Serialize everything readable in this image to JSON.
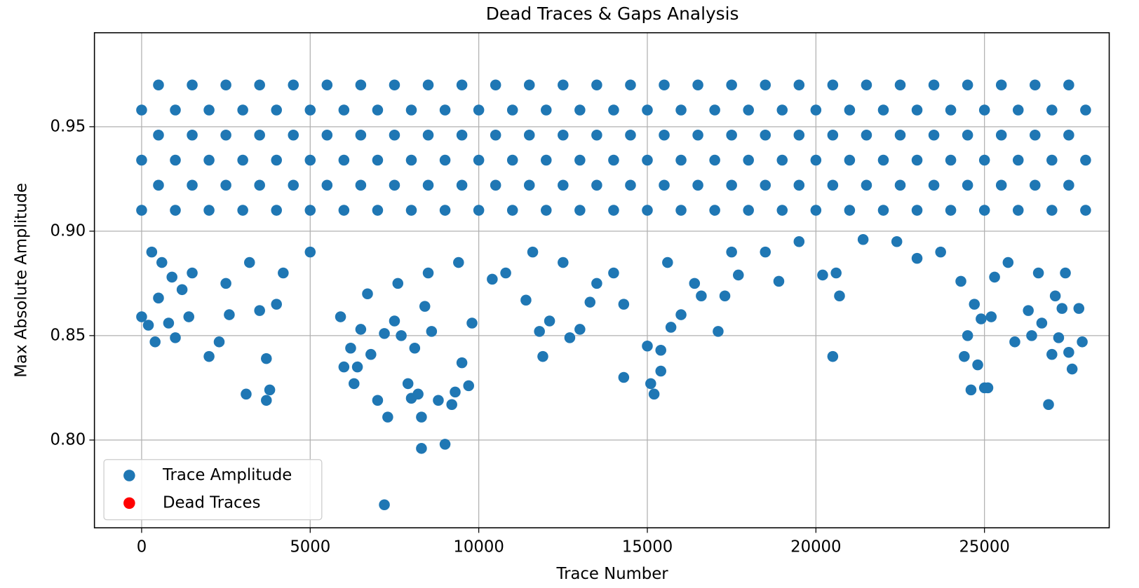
{
  "chart_data": {
    "type": "scatter",
    "title": "Dead Traces & Gaps Analysis",
    "xlabel": "Trace Number",
    "ylabel": "Max Absolute Amplitude",
    "xlim": [
      -1400,
      28700
    ],
    "ylim": [
      0.758,
      0.995
    ],
    "xticks": [
      0,
      5000,
      10000,
      15000,
      20000,
      25000
    ],
    "yticks": [
      {
        "value": 0.8,
        "label": "0.80"
      },
      0.85,
      {
        "value": 0.9,
        "label": "0.90"
      },
      0.95
    ],
    "grid": true,
    "legend": "lower left",
    "series": [
      {
        "name": "Trace Amplitude",
        "color": "#1f77b4",
        "x": [
          0,
          1000,
          2000,
          3000,
          4000,
          5000,
          6000,
          7000,
          8000,
          9000,
          10000,
          11000,
          12000,
          13000,
          14000,
          15000,
          16000,
          17000,
          18000,
          19000,
          20000,
          21000,
          22000,
          23000,
          24000,
          25000,
          26000,
          27000,
          28000,
          500,
          1500,
          2500,
          3500,
          4500,
          5500,
          6500,
          7500,
          8500,
          9500,
          10500,
          11500,
          12500,
          13500,
          14500,
          15500,
          16500,
          17500,
          18500,
          19500,
          20500,
          21500,
          22500,
          23500,
          24500,
          25500,
          26500,
          27500,
          0,
          1000,
          2000,
          3000,
          4000,
          5000,
          6000,
          7000,
          8000,
          9000,
          10000,
          11000,
          12000,
          13000,
          14000,
          15000,
          16000,
          17000,
          18000,
          19000,
          20000,
          21000,
          22000,
          23000,
          24000,
          25000,
          26000,
          27000,
          28000,
          500,
          1500,
          2500,
          3500,
          4500,
          5500,
          6500,
          7500,
          8500,
          9500,
          10500,
          11500,
          12500,
          13500,
          14500,
          15500,
          16500,
          17500,
          18500,
          19500,
          20500,
          21500,
          22500,
          23500,
          24500,
          25500,
          26500,
          27500,
          0,
          1000,
          2000,
          3000,
          4000,
          5000,
          6000,
          7000,
          8000,
          9000,
          10000,
          11000,
          12000,
          13000,
          14000,
          15000,
          16000,
          17000,
          18000,
          19000,
          20000,
          21000,
          22000,
          23000,
          24000,
          25000,
          26000,
          27000,
          28000,
          500,
          1500,
          2500,
          3500,
          4500,
          5500,
          6500,
          7500,
          8500,
          9500,
          10500,
          11500,
          12500,
          13500,
          14500,
          15500,
          16500,
          17500,
          18500,
          19500,
          20500,
          21500,
          22500,
          23500,
          24500,
          25500,
          26500,
          27500,
          0,
          200,
          400,
          500,
          800,
          1000,
          1200,
          1400,
          2000,
          2300,
          2600,
          3100,
          3500,
          3700,
          3700,
          3800,
          4000,
          5900,
          6000,
          6200,
          6300,
          6400,
          6500,
          6800,
          7000,
          7200,
          7300,
          7500,
          7700,
          7900,
          8000,
          8100,
          8200,
          8300,
          8300,
          8400,
          8600,
          8800,
          9000,
          9200,
          9300,
          9500,
          9700,
          9800,
          7200,
          10400,
          11400,
          11800,
          11900,
          12100,
          12700,
          13000,
          13300,
          14300,
          14300,
          15000,
          15100,
          15200,
          15400,
          15400,
          15700,
          16000,
          16600,
          17100,
          17300,
          17700,
          18900,
          20200,
          20500,
          20600,
          20700,
          23000,
          24300,
          24400,
          24500,
          24600,
          24700,
          24800,
          24900,
          25000,
          25100,
          25200,
          25300,
          25900,
          26300,
          26400,
          26700,
          26900,
          27000,
          27100,
          27200,
          27300,
          27500,
          27600,
          27800,
          27900,
          300,
          600,
          900,
          1500,
          2500,
          3200,
          4200,
          5000,
          6700,
          7600,
          8500,
          9400,
          10800,
          11600,
          12500,
          13500,
          14000,
          15600,
          16400,
          17500,
          18500,
          19500,
          21400,
          22400,
          23700,
          25700,
          26600,
          27400
        ],
        "values": [
          0.91,
          0.91,
          0.91,
          0.91,
          0.91,
          0.91,
          0.91,
          0.91,
          0.91,
          0.91,
          0.91,
          0.91,
          0.91,
          0.91,
          0.91,
          0.91,
          0.91,
          0.91,
          0.91,
          0.91,
          0.91,
          0.91,
          0.91,
          0.91,
          0.91,
          0.91,
          0.91,
          0.91,
          0.91,
          0.922,
          0.922,
          0.922,
          0.922,
          0.922,
          0.922,
          0.922,
          0.922,
          0.922,
          0.922,
          0.922,
          0.922,
          0.922,
          0.922,
          0.922,
          0.922,
          0.922,
          0.922,
          0.922,
          0.922,
          0.922,
          0.922,
          0.922,
          0.922,
          0.922,
          0.922,
          0.922,
          0.922,
          0.934,
          0.934,
          0.934,
          0.934,
          0.934,
          0.934,
          0.934,
          0.934,
          0.934,
          0.934,
          0.934,
          0.934,
          0.934,
          0.934,
          0.934,
          0.934,
          0.934,
          0.934,
          0.934,
          0.934,
          0.934,
          0.934,
          0.934,
          0.934,
          0.934,
          0.934,
          0.934,
          0.934,
          0.934,
          0.946,
          0.946,
          0.946,
          0.946,
          0.946,
          0.946,
          0.946,
          0.946,
          0.946,
          0.946,
          0.946,
          0.946,
          0.946,
          0.946,
          0.946,
          0.946,
          0.946,
          0.946,
          0.946,
          0.946,
          0.946,
          0.946,
          0.946,
          0.946,
          0.946,
          0.946,
          0.946,
          0.946,
          0.958,
          0.958,
          0.958,
          0.958,
          0.958,
          0.958,
          0.958,
          0.958,
          0.958,
          0.958,
          0.958,
          0.958,
          0.958,
          0.958,
          0.958,
          0.958,
          0.958,
          0.958,
          0.958,
          0.958,
          0.958,
          0.958,
          0.958,
          0.958,
          0.958,
          0.958,
          0.958,
          0.958,
          0.958,
          0.97,
          0.97,
          0.97,
          0.97,
          0.97,
          0.97,
          0.97,
          0.97,
          0.97,
          0.97,
          0.97,
          0.97,
          0.97,
          0.97,
          0.97,
          0.97,
          0.97,
          0.97,
          0.97,
          0.97,
          0.97,
          0.97,
          0.97,
          0.97,
          0.97,
          0.97,
          0.97,
          0.97,
          0.859,
          0.855,
          0.847,
          0.868,
          0.856,
          0.849,
          0.872,
          0.859,
          0.84,
          0.847,
          0.86,
          0.822,
          0.862,
          0.819,
          0.839,
          0.824,
          0.865,
          0.859,
          0.835,
          0.844,
          0.827,
          0.835,
          0.853,
          0.841,
          0.819,
          0.851,
          0.811,
          0.857,
          0.85,
          0.827,
          0.82,
          0.844,
          0.822,
          0.796,
          0.811,
          0.864,
          0.852,
          0.819,
          0.798,
          0.817,
          0.823,
          0.837,
          0.826,
          0.856,
          0.769,
          0.877,
          0.867,
          0.852,
          0.84,
          0.857,
          0.849,
          0.853,
          0.866,
          0.83,
          0.865,
          0.845,
          0.827,
          0.822,
          0.843,
          0.833,
          0.854,
          0.86,
          0.869,
          0.852,
          0.869,
          0.879,
          0.876,
          0.879,
          0.84,
          0.88,
          0.869,
          0.887,
          0.876,
          0.84,
          0.85,
          0.824,
          0.865,
          0.836,
          0.858,
          0.825,
          0.825,
          0.859,
          0.878,
          0.847,
          0.862,
          0.85,
          0.856,
          0.817,
          0.841,
          0.869,
          0.849,
          0.863,
          0.842,
          0.834,
          0.863,
          0.847,
          0.89,
          0.885,
          0.878,
          0.88,
          0.875,
          0.885,
          0.88,
          0.89,
          0.87,
          0.875,
          0.88,
          0.885,
          0.88,
          0.89,
          0.885,
          0.875,
          0.88,
          0.885,
          0.875,
          0.89,
          0.89,
          0.895,
          0.896,
          0.895,
          0.89,
          0.885,
          0.88,
          0.88
        ]
      },
      {
        "name": "Dead Traces",
        "color": "#ff0000",
        "x": [],
        "values": []
      }
    ]
  }
}
